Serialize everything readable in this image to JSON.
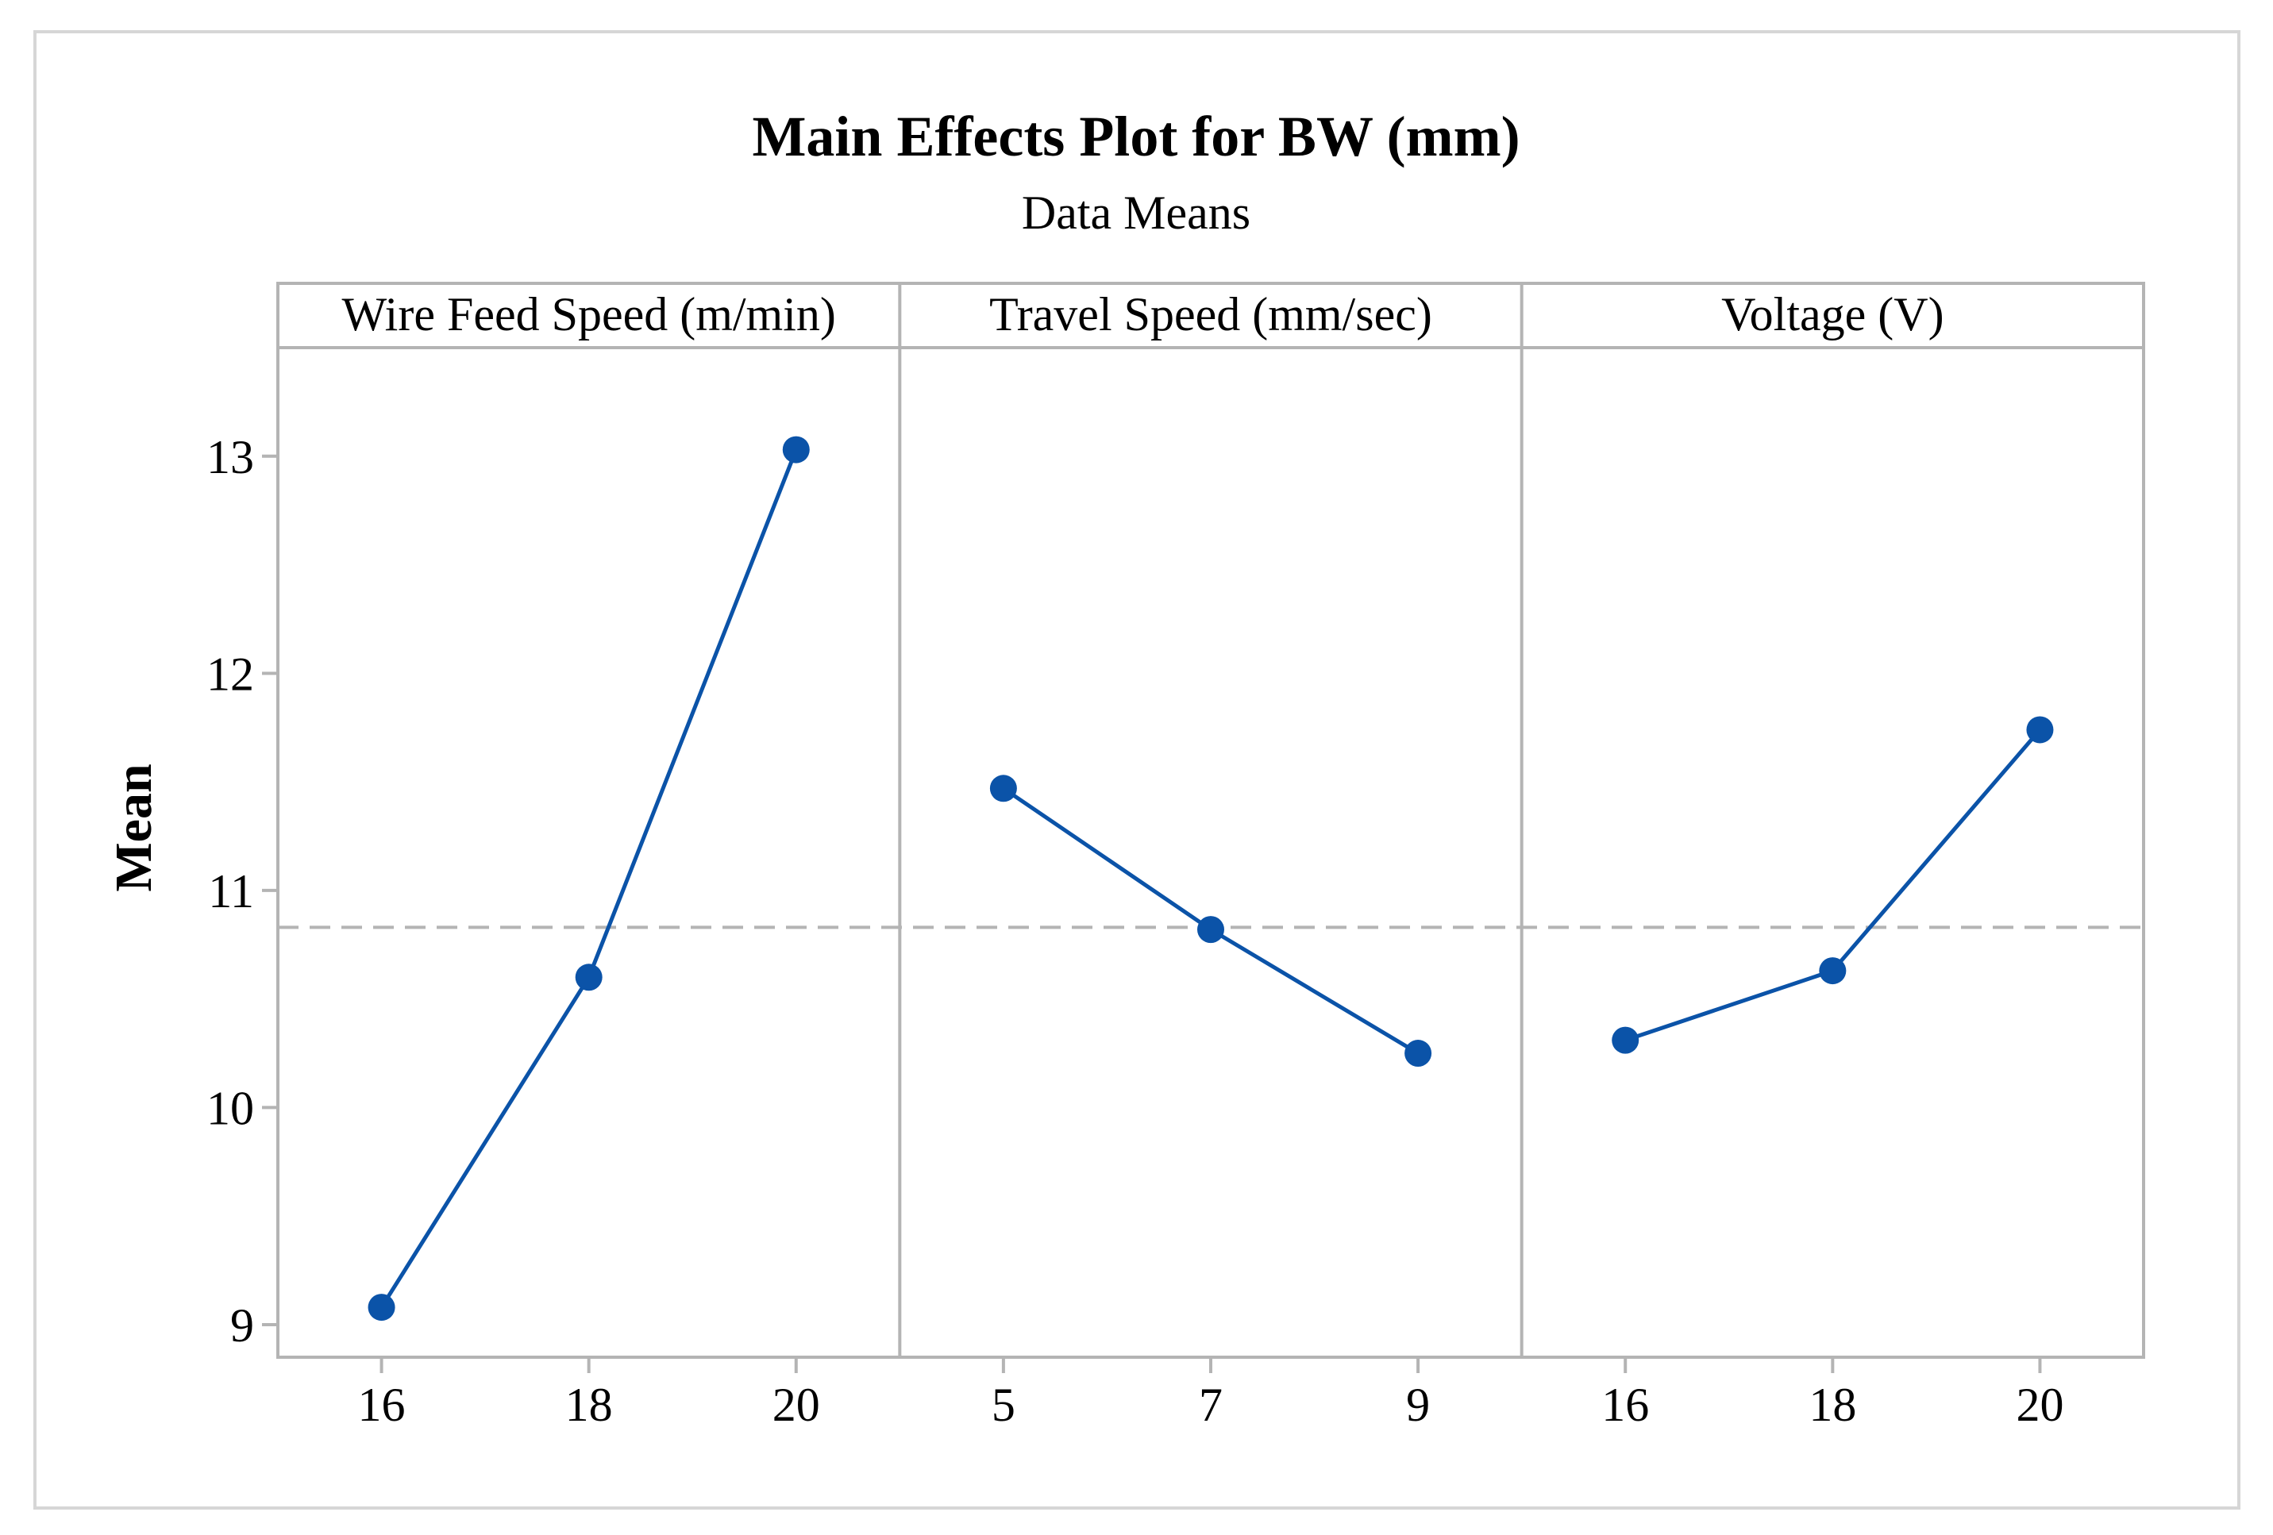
{
  "chart_data": {
    "type": "line",
    "title": "Main Effects Plot for BW (mm)",
    "subtitle": "Data Means",
    "ylabel": "Mean",
    "ylim": [
      8.85,
      13.5
    ],
    "yticks": [
      "9",
      "10",
      "11",
      "12",
      "13"
    ],
    "grand_mean": 10.83,
    "colors": {
      "series": "#0b53a8",
      "mean_line": "#b4b4b4",
      "frame": "#b4b4b4",
      "marker": "#0b53a8"
    },
    "panels": [
      {
        "name": "Wire Feed Speed (m/min)",
        "categories": [
          "16",
          "18",
          "20"
        ],
        "values": [
          9.08,
          10.6,
          13.03
        ]
      },
      {
        "name": "Travel Speed (mm/sec)",
        "categories": [
          "5",
          "7",
          "9"
        ],
        "values": [
          11.47,
          10.82,
          10.25
        ]
      },
      {
        "name": "Voltage (V)",
        "categories": [
          "16",
          "18",
          "20"
        ],
        "values": [
          10.31,
          10.63,
          11.74
        ]
      }
    ]
  }
}
